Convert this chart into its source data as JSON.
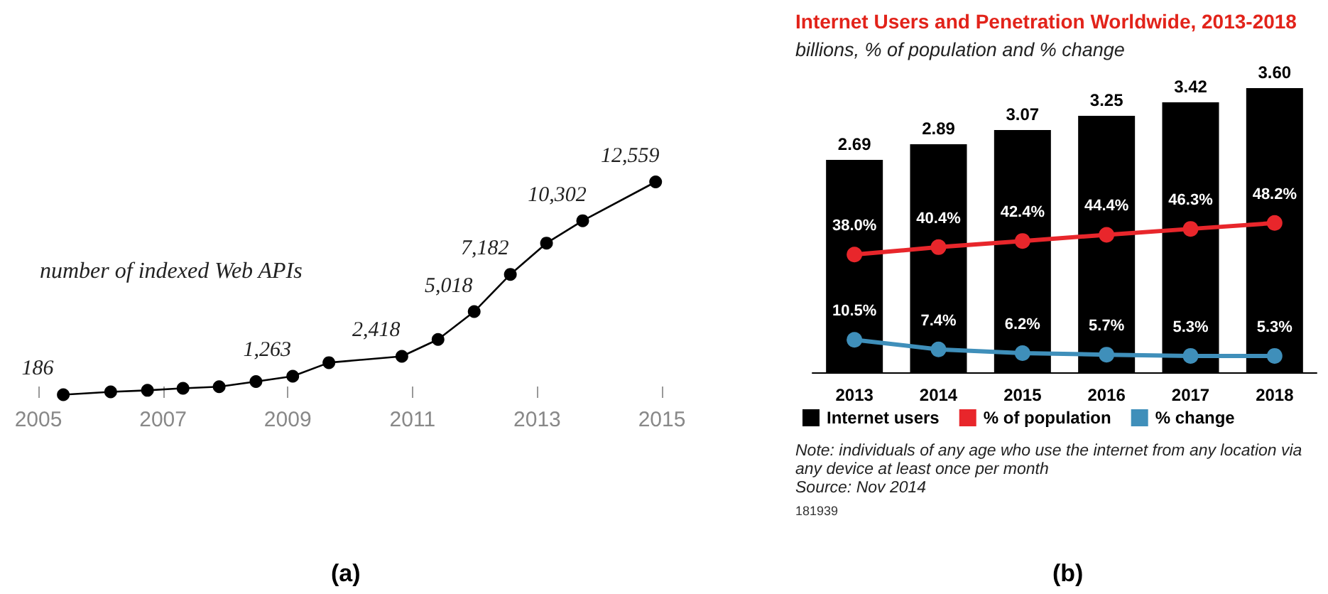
{
  "chart_data": [
    {
      "type": "line",
      "x": [
        2005.4,
        2006.16,
        2006.75,
        2007.32,
        2007.9,
        2008.49,
        2009.08,
        2009.66,
        2010.83,
        2011.41,
        2011.99,
        2012.57,
        2013.15,
        2013.73,
        2014.9
      ],
      "values": [
        186,
        350,
        440,
        560,
        650,
        950,
        1263,
        2050,
        2418,
        3400,
        5018,
        7182,
        9000,
        10302,
        12559
      ],
      "value_labels": [
        "186",
        null,
        null,
        null,
        null,
        null,
        "1,263",
        null,
        "2,418",
        null,
        "5,018",
        "7,182",
        null,
        "10,302",
        "12,559"
      ],
      "color": "#000000",
      "marker": "circle",
      "line_style": "solid",
      "xlim": [
        2005,
        2015
      ],
      "xticks": [
        2005,
        2007,
        2009,
        2011,
        2013,
        2015
      ],
      "grid": false,
      "tick_labels": "x",
      "annotations": [
        "number of indexed Web APIs",
        "(a)"
      ]
    },
    {
      "type": "bar",
      "title": "Internet Users and Penetration Worldwide, 2013-2018",
      "subtitle": "billions, % of population and % change",
      "categories": [
        "2013",
        "2014",
        "2015",
        "2016",
        "2017",
        "2018"
      ],
      "series": [
        {
          "name": "Internet users",
          "type": "bar",
          "color": "#000000",
          "values": [
            2.69,
            2.89,
            3.07,
            3.25,
            3.42,
            3.6
          ],
          "value_labels": [
            "2.69",
            "2.89",
            "3.07",
            "3.25",
            "3.42",
            "3.60"
          ]
        },
        {
          "name": "% of population",
          "type": "line",
          "axis": "y2",
          "color": "#e8262b",
          "values": [
            38.0,
            40.4,
            42.4,
            44.4,
            46.3,
            48.2
          ],
          "value_labels": [
            "38.0%",
            "40.4%",
            "42.4%",
            "44.4%",
            "46.3%",
            "48.2%"
          ]
        },
        {
          "name": "% change",
          "type": "line",
          "axis": "y2",
          "color": "#3f8fba",
          "values": [
            10.5,
            7.4,
            6.2,
            5.7,
            5.3,
            5.3
          ],
          "value_labels": [
            "10.5%",
            "7.4%",
            "6.2%",
            "5.7%",
            "5.3%",
            "5.3%"
          ]
        }
      ],
      "marker": "circle",
      "legend": "bottom",
      "grid": false,
      "tick_labels": "x",
      "annotations": [
        "Note: individuals of any age who use the internet from any location via any device at least once per month",
        "Source: Nov 2014",
        "181939",
        "(b)"
      ]
    }
  ]
}
